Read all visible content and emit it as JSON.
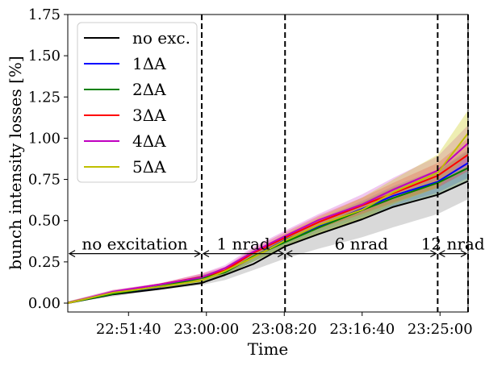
{
  "chart_data": {
    "type": "line",
    "xlabel": "Time",
    "ylabel": "bunch intensity losses [%]",
    "x_start": "22:45:10",
    "x_end": "23:28:00",
    "xticks": [
      "22:51:40",
      "23:00:00",
      "23:08:20",
      "23:16:40",
      "23:25:00"
    ],
    "ylim": [
      0.0,
      1.75
    ],
    "yticks": [
      "0.00",
      "0.25",
      "0.50",
      "0.75",
      "1.00",
      "1.25",
      "1.50",
      "1.75"
    ],
    "grid": false,
    "legend_position": "top-left",
    "phase_boundaries": [
      "22:59:30",
      "23:08:25",
      "23:24:45",
      "23:28:00"
    ],
    "annotations": [
      {
        "text": "no excitation",
        "from": "22:45:10",
        "to": "22:59:30",
        "y": 0.3
      },
      {
        "text": "1 nrad",
        "from": "22:59:30",
        "to": "23:08:25",
        "y": 0.3
      },
      {
        "text": "6 nrad",
        "from": "23:08:25",
        "to": "23:24:45",
        "y": 0.3
      },
      {
        "text": "12 nrad",
        "from": "23:24:45",
        "to": "23:28:00",
        "y": 0.3
      }
    ],
    "series": [
      {
        "name": "no exc.",
        "color": "#000000",
        "band_color": "#808080",
        "points": [
          [
            "22:45:10",
            0.0
          ],
          [
            "22:50:00",
            0.05
          ],
          [
            "22:55:00",
            0.09
          ],
          [
            "22:59:30",
            0.12
          ],
          [
            "23:02:00",
            0.17
          ],
          [
            "23:05:00",
            0.24
          ],
          [
            "23:08:25",
            0.34
          ],
          [
            "23:12:00",
            0.42
          ],
          [
            "23:16:40",
            0.51
          ],
          [
            "23:20:00",
            0.58
          ],
          [
            "23:24:45",
            0.66
          ],
          [
            "23:28:00",
            0.74
          ]
        ],
        "band_low": [
          0.0,
          0.04,
          0.08,
          0.11,
          0.14,
          0.2,
          0.27,
          0.33,
          0.4,
          0.46,
          0.54,
          0.63
        ],
        "band_high": [
          0.01,
          0.06,
          0.1,
          0.14,
          0.19,
          0.27,
          0.38,
          0.46,
          0.56,
          0.64,
          0.72,
          0.82
        ]
      },
      {
        "name": "1ΔA",
        "color": "#0000ff",
        "band_color": "#4a6cff",
        "points": [
          [
            "22:45:10",
            0.0
          ],
          [
            "22:50:00",
            0.06
          ],
          [
            "22:55:00",
            0.1
          ],
          [
            "22:59:30",
            0.15
          ],
          [
            "23:02:00",
            0.19
          ],
          [
            "23:05:00",
            0.28
          ],
          [
            "23:08:25",
            0.38
          ],
          [
            "23:12:00",
            0.47
          ],
          [
            "23:16:40",
            0.57
          ],
          [
            "23:20:00",
            0.65
          ],
          [
            "23:24:45",
            0.74
          ],
          [
            "23:28:00",
            0.85
          ]
        ],
        "band_low": [
          0.0,
          0.05,
          0.09,
          0.13,
          0.17,
          0.25,
          0.35,
          0.43,
          0.52,
          0.59,
          0.67,
          0.76
        ],
        "band_high": [
          0.01,
          0.07,
          0.11,
          0.17,
          0.21,
          0.31,
          0.41,
          0.51,
          0.62,
          0.71,
          0.81,
          0.93
        ]
      },
      {
        "name": "2ΔA",
        "color": "#008000",
        "band_color": "#3a8a3a",
        "points": [
          [
            "22:45:10",
            0.0
          ],
          [
            "22:50:00",
            0.06
          ],
          [
            "22:55:00",
            0.1
          ],
          [
            "22:59:30",
            0.15
          ],
          [
            "23:02:00",
            0.19
          ],
          [
            "23:05:00",
            0.28
          ],
          [
            "23:08:25",
            0.37
          ],
          [
            "23:12:00",
            0.46
          ],
          [
            "23:16:40",
            0.56
          ],
          [
            "23:20:00",
            0.64
          ],
          [
            "23:24:45",
            0.73
          ],
          [
            "23:28:00",
            0.82
          ]
        ],
        "band_low": [
          0.0,
          0.05,
          0.09,
          0.13,
          0.17,
          0.25,
          0.34,
          0.42,
          0.51,
          0.58,
          0.66,
          0.74
        ],
        "band_high": [
          0.01,
          0.07,
          0.11,
          0.17,
          0.21,
          0.31,
          0.4,
          0.5,
          0.61,
          0.7,
          0.8,
          0.92
        ]
      },
      {
        "name": "3ΔA",
        "color": "#ff0000",
        "band_color": "#ff3030",
        "points": [
          [
            "22:45:10",
            0.0
          ],
          [
            "22:50:00",
            0.07
          ],
          [
            "22:55:00",
            0.11
          ],
          [
            "22:59:30",
            0.16
          ],
          [
            "23:02:00",
            0.2
          ],
          [
            "23:05:00",
            0.3
          ],
          [
            "23:08:25",
            0.4
          ],
          [
            "23:12:00",
            0.49
          ],
          [
            "23:16:40",
            0.59
          ],
          [
            "23:20:00",
            0.67
          ],
          [
            "23:24:45",
            0.77
          ],
          [
            "23:28:00",
            0.9
          ]
        ],
        "band_low": [
          0.0,
          0.06,
          0.1,
          0.14,
          0.18,
          0.27,
          0.37,
          0.45,
          0.54,
          0.61,
          0.7,
          0.8
        ],
        "band_high": [
          0.01,
          0.08,
          0.12,
          0.18,
          0.22,
          0.33,
          0.43,
          0.53,
          0.64,
          0.73,
          0.85,
          1.0
        ]
      },
      {
        "name": "4ΔA",
        "color": "#c000c0",
        "band_color": "#cc44cc",
        "points": [
          [
            "22:45:10",
            0.0
          ],
          [
            "22:50:00",
            0.07
          ],
          [
            "22:55:00",
            0.11
          ],
          [
            "22:59:30",
            0.16
          ],
          [
            "23:02:00",
            0.21
          ],
          [
            "23:05:00",
            0.31
          ],
          [
            "23:08:25",
            0.41
          ],
          [
            "23:12:00",
            0.5
          ],
          [
            "23:16:40",
            0.6
          ],
          [
            "23:20:00",
            0.69
          ],
          [
            "23:24:45",
            0.8
          ],
          [
            "23:28:00",
            0.97
          ]
        ],
        "band_low": [
          0.0,
          0.06,
          0.1,
          0.14,
          0.19,
          0.28,
          0.38,
          0.46,
          0.55,
          0.63,
          0.72,
          0.86
        ],
        "band_high": [
          0.01,
          0.08,
          0.12,
          0.18,
          0.23,
          0.34,
          0.44,
          0.54,
          0.66,
          0.76,
          0.89,
          1.08
        ]
      },
      {
        "name": "5ΔA",
        "color": "#bfbf00",
        "band_color": "#c8c800",
        "points": [
          [
            "22:45:10",
            0.0
          ],
          [
            "22:50:00",
            0.06
          ],
          [
            "22:55:00",
            0.1
          ],
          [
            "22:59:30",
            0.14
          ],
          [
            "23:02:00",
            0.19
          ],
          [
            "23:05:00",
            0.28
          ],
          [
            "23:08:25",
            0.38
          ],
          [
            "23:12:00",
            0.47
          ],
          [
            "23:16:40",
            0.57
          ],
          [
            "23:20:00",
            0.67
          ],
          [
            "23:24:45",
            0.79
          ],
          [
            "23:28:00",
            1.03
          ]
        ],
        "band_low": [
          0.0,
          0.05,
          0.09,
          0.12,
          0.17,
          0.25,
          0.34,
          0.42,
          0.51,
          0.6,
          0.7,
          0.9
        ],
        "band_high": [
          0.01,
          0.07,
          0.11,
          0.16,
          0.21,
          0.31,
          0.42,
          0.52,
          0.64,
          0.75,
          0.9,
          1.17
        ]
      }
    ]
  }
}
